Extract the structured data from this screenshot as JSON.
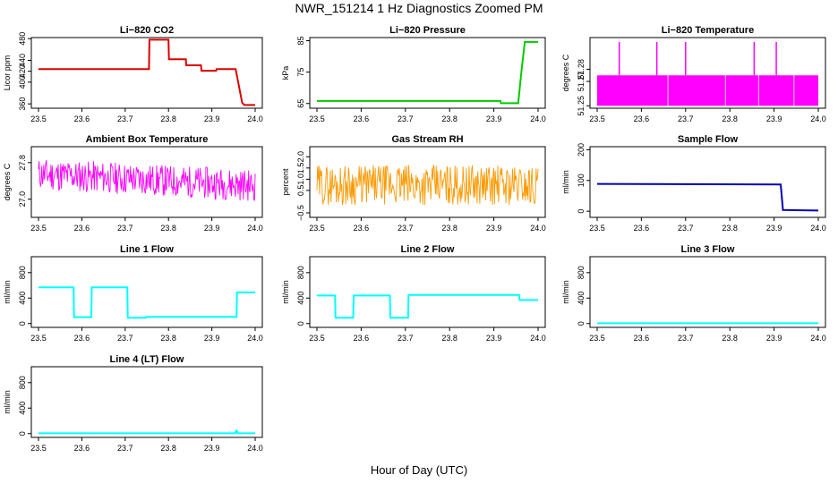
{
  "title": "NWR_151214  1 Hz Diagnostics Zoomed PM",
  "xlabel": "Hour of Day (UTC)",
  "chart_data": [
    {
      "type": "line",
      "title": "Li−820 CO2",
      "ylabel": "Licor ppm",
      "color": "#dd0000",
      "xlim": [
        23.5,
        24.0
      ],
      "xticks": [
        "23.5",
        "23.6",
        "23.7",
        "23.8",
        "23.9",
        "24.0"
      ],
      "ylim": [
        352,
        482
      ],
      "yticks": [
        {
          "v": 360,
          "t": "360"
        },
        {
          "v": 400,
          "t": "400"
        },
        {
          "v": 420,
          "t": "420"
        },
        {
          "v": 440,
          "t": "440"
        },
        {
          "v": 480,
          "t": "480"
        }
      ],
      "series": [
        {
          "x": [
            23.5,
            23.755,
            23.756,
            23.8,
            23.801,
            23.84,
            23.841,
            23.875,
            23.876,
            23.91,
            23.911,
            23.955,
            23.97,
            23.975,
            24.0
          ],
          "values": [
            424,
            424,
            478,
            478,
            442,
            442,
            431,
            431,
            421,
            421,
            424,
            424,
            362,
            358,
            358
          ]
        }
      ]
    },
    {
      "type": "line",
      "title": "Li−820 Pressure",
      "ylabel": "kPa",
      "color": "#00cc00",
      "xlim": [
        23.5,
        24.0
      ],
      "xticks": [
        "23.5",
        "23.6",
        "23.7",
        "23.8",
        "23.9",
        "24.0"
      ],
      "ylim": [
        63.5,
        86
      ],
      "yticks": [
        {
          "v": 65,
          "t": "65"
        },
        {
          "v": 75,
          "t": "75"
        },
        {
          "v": 85,
          "t": "85"
        }
      ],
      "series": [
        {
          "x": [
            23.5,
            23.915,
            23.916,
            23.955,
            23.963,
            23.97,
            24.0
          ],
          "values": [
            65.8,
            65.8,
            65.1,
            65.1,
            76,
            84.6,
            84.6
          ]
        }
      ]
    },
    {
      "type": "area",
      "title": "Li−820 Temperature",
      "ylabel": "degrees C",
      "color": "#ff00ff",
      "xlim": [
        23.5,
        24.0
      ],
      "xticks": [
        "23.5",
        "23.6",
        "23.7",
        "23.8",
        "23.9",
        "24.0"
      ],
      "ylim": [
        51.248,
        51.306
      ],
      "yticks": [
        {
          "v": 51.25,
          "t": "51.25"
        },
        {
          "v": 51.27,
          "t": "51.27"
        },
        {
          "v": 51.28,
          "t": "51.28"
        }
      ],
      "band": [
        51.25,
        51.275
      ],
      "spikes": [
        23.55,
        23.635,
        23.7,
        23.855,
        23.905
      ]
    },
    {
      "type": "line",
      "title": "Ambient Box Temperature",
      "ylabel": "degrees C",
      "color": "#ff00ff",
      "xlim": [
        23.5,
        24.0
      ],
      "xticks": [
        "23.5",
        "23.6",
        "23.7",
        "23.8",
        "23.9",
        "24.0"
      ],
      "ylim": [
        26.6,
        28.15
      ],
      "yticks": [
        {
          "v": 27.0,
          "t": "27.0"
        },
        {
          "v": 27.8,
          "t": "27.8"
        }
      ],
      "noise": {
        "mean_start": 27.55,
        "mean_end": 27.3,
        "amp": 0.35,
        "seed": 11
      }
    },
    {
      "type": "line",
      "title": "Gas Stream RH",
      "ylabel": "percent",
      "color": "#ff9900",
      "xlim": [
        23.5,
        24.0
      ],
      "xticks": [
        "23.5",
        "23.6",
        "23.7",
        "23.8",
        "23.9",
        "24.0"
      ],
      "ylim": [
        -0.7,
        2.45
      ],
      "yticks": [
        {
          "v": -0.5,
          "t": "−0.5"
        },
        {
          "v": 0.5,
          "t": "0.5"
        },
        {
          "v": 1.0,
          "t": "1.0"
        },
        {
          "v": 1.5,
          "t": "1.5"
        },
        {
          "v": 2.0,
          "t": "2.0"
        }
      ],
      "noise": {
        "mean_start": 0.75,
        "mean_end": 0.75,
        "amp": 0.9,
        "seed": 29
      }
    },
    {
      "type": "line",
      "title": "Sample Flow",
      "ylabel": "ml/min",
      "color": "#0000bb",
      "xlim": [
        23.5,
        24.0
      ],
      "xticks": [
        "23.5",
        "23.6",
        "23.7",
        "23.8",
        "23.9",
        "24.0"
      ],
      "ylim": [
        -20,
        210
      ],
      "yticks": [
        {
          "v": 0,
          "t": "0"
        },
        {
          "v": 100,
          "t": "100"
        },
        {
          "v": 200,
          "t": "200"
        }
      ],
      "series": [
        {
          "x": [
            23.5,
            23.915,
            23.92,
            24.0
          ],
          "values": [
            89,
            87,
            4,
            2
          ]
        }
      ]
    },
    {
      "type": "line",
      "title": "Line 1 Flow",
      "ylabel": "ml/min",
      "color": "#00ffff",
      "xlim": [
        23.5,
        24.0
      ],
      "xticks": [
        "23.5",
        "23.6",
        "23.7",
        "23.8",
        "23.9",
        "24.0"
      ],
      "ylim": [
        -60,
        1050
      ],
      "yticks": [
        {
          "v": 0,
          "t": "0"
        },
        {
          "v": 400,
          "t": "400"
        },
        {
          "v": 800,
          "t": "800"
        }
      ],
      "series": [
        {
          "x": [
            23.5,
            23.581,
            23.582,
            23.622,
            23.623,
            23.705,
            23.706,
            23.748,
            23.749,
            23.957,
            23.958,
            24.0
          ],
          "values": [
            570,
            570,
            100,
            100,
            570,
            570,
            90,
            90,
            105,
            105,
            490,
            490
          ]
        }
      ]
    },
    {
      "type": "line",
      "title": "Line 2 Flow",
      "ylabel": "ml/min",
      "color": "#00ffff",
      "xlim": [
        23.5,
        24.0
      ],
      "xticks": [
        "23.5",
        "23.6",
        "23.7",
        "23.8",
        "23.9",
        "24.0"
      ],
      "ylim": [
        -60,
        1050
      ],
      "yticks": [
        {
          "v": 0,
          "t": "0"
        },
        {
          "v": 400,
          "t": "400"
        },
        {
          "v": 800,
          "t": "800"
        }
      ],
      "series": [
        {
          "x": [
            23.5,
            23.541,
            23.542,
            23.582,
            23.583,
            23.665,
            23.666,
            23.706,
            23.707,
            23.957,
            23.958,
            24.0
          ],
          "values": [
            440,
            440,
            90,
            90,
            440,
            440,
            90,
            90,
            450,
            450,
            370,
            370
          ]
        }
      ]
    },
    {
      "type": "line",
      "title": "Line 3 Flow",
      "ylabel": "ml/min",
      "color": "#00ffff",
      "xlim": [
        23.5,
        24.0
      ],
      "xticks": [
        "23.5",
        "23.6",
        "23.7",
        "23.8",
        "23.9",
        "24.0"
      ],
      "ylim": [
        -60,
        1050
      ],
      "yticks": [
        {
          "v": 0,
          "t": "0"
        },
        {
          "v": 400,
          "t": "400"
        },
        {
          "v": 800,
          "t": "800"
        }
      ],
      "series": [
        {
          "x": [
            23.5,
            24.0
          ],
          "values": [
            4,
            4
          ]
        }
      ]
    },
    {
      "type": "line",
      "title": "Line 4 (LT) Flow",
      "ylabel": "ml/min",
      "color": "#00ffff",
      "xlim": [
        23.5,
        24.0
      ],
      "xticks": [
        "23.5",
        "23.6",
        "23.7",
        "23.8",
        "23.9",
        "24.0"
      ],
      "ylim": [
        -60,
        1050
      ],
      "yticks": [
        {
          "v": 0,
          "t": "0"
        },
        {
          "v": 400,
          "t": "400"
        },
        {
          "v": 800,
          "t": "800"
        }
      ],
      "series": [
        {
          "x": [
            23.5,
            23.955,
            23.956,
            23.958,
            23.96,
            24.0
          ],
          "values": [
            4,
            4,
            45,
            45,
            4,
            4
          ]
        }
      ]
    }
  ]
}
